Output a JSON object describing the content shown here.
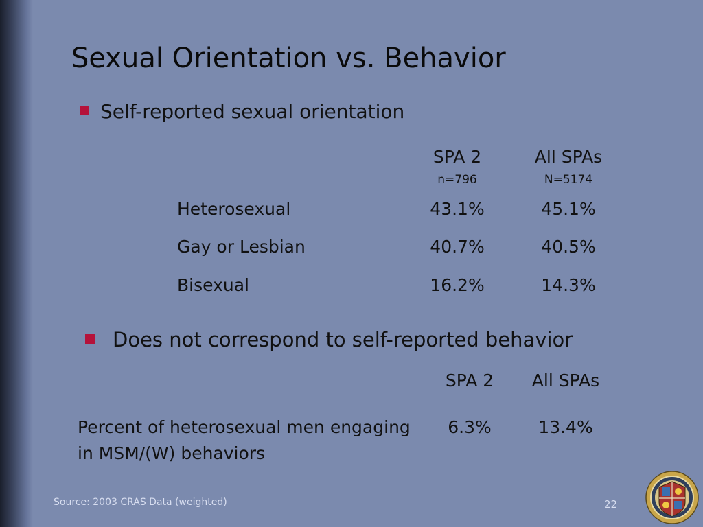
{
  "slide": {
    "title": "Sexual Orientation vs. Behavior",
    "bullet1": "Self-reported sexual orientation",
    "bullet2": "Does not correspond to self-reported behavior",
    "table1": {
      "col1_header": "SPA 2",
      "col1_n": "n=796",
      "col2_header": "All SPAs",
      "col2_n": "N=5174",
      "rows": [
        {
          "label": "Heterosexual",
          "spa2": "43.1%",
          "all": "45.1%"
        },
        {
          "label": "Gay or Lesbian",
          "spa2": "40.7%",
          "all": "40.5%"
        },
        {
          "label": "Bisexual",
          "spa2": "16.2%",
          "all": "14.3%"
        }
      ]
    },
    "table2": {
      "col1_header": "SPA 2",
      "col2_header": "All SPAs",
      "row_label_line1": "Percent of heterosexual men engaging",
      "row_label_line2": "in MSM/(W) behaviors",
      "spa2": "6.3%",
      "all": "13.4%"
    },
    "footer": {
      "source": "Source: 2003 CRAS Data (weighted)",
      "page_number": "22"
    },
    "colors": {
      "background": "#7b8aae",
      "bullet": "#b5123a"
    }
  }
}
